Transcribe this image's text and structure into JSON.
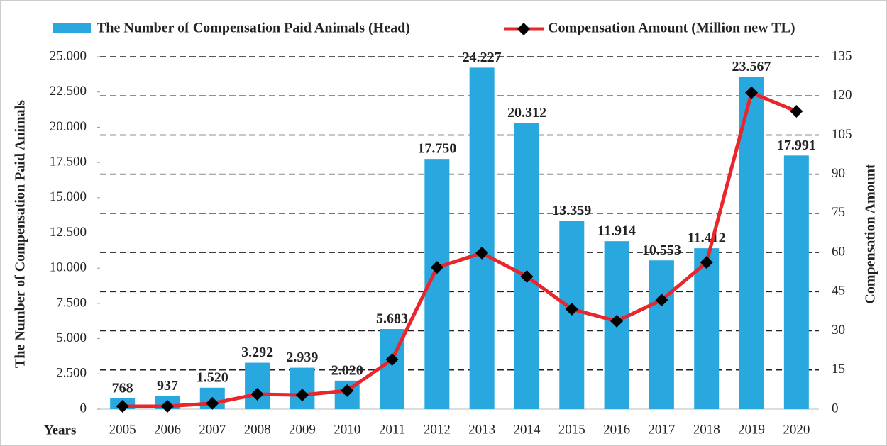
{
  "chart_data": {
    "type": "bar",
    "categories": [
      "2005",
      "2006",
      "2007",
      "2008",
      "2009",
      "2010",
      "2011",
      "2012",
      "2013",
      "2014",
      "2015",
      "2016",
      "2017",
      "2018",
      "2019",
      "2020"
    ],
    "x_label": "Years",
    "y_label": "The Number of  Compensation Paid Animals",
    "y2_label": "Compensation Amount",
    "series": [
      {
        "name": "The Number of Compensation Paid Animals (Head)",
        "type": "bar",
        "color": "#29a8e0",
        "values": [
          768,
          937,
          1520,
          3292,
          2939,
          2020,
          5683,
          17750,
          24227,
          20312,
          13359,
          11914,
          10553,
          11412,
          23567,
          17991
        ],
        "value_labels": [
          "768",
          "937",
          "1.520",
          "3.292",
          "2.939",
          "2.020",
          "5.683",
          "17.750",
          "24.227",
          "20.312",
          "13.359",
          "11.914",
          "10.553",
          "11.412",
          "23.567",
          "17.991"
        ]
      },
      {
        "name": "Compensation Amount (Million new TL)",
        "type": "line",
        "axis": "y2",
        "color": "#e8262b",
        "marker_color": "#000000",
        "values": [
          1.1,
          1.1,
          2.2,
          5.7,
          5.4,
          7.1,
          19,
          54.3,
          59.8,
          50.8,
          38.3,
          33.7,
          41.8,
          56.2,
          121.2,
          114.1
        ]
      }
    ],
    "ylim": [
      0,
      25000
    ],
    "yticks": [
      0,
      {
        "value": 2500,
        "label": "2.500"
      },
      {
        "value": 5000,
        "label": "5.000"
      },
      {
        "value": 7500,
        "label": "7.500"
      },
      {
        "value": 10000,
        "label": "10.000"
      },
      {
        "value": 12500,
        "label": "12.500"
      },
      {
        "value": 15000,
        "label": "15.000"
      },
      {
        "value": 17500,
        "label": "17.500"
      },
      {
        "value": 20000,
        "label": "20.000"
      },
      {
        "value": 22500,
        "label": "22.500"
      },
      {
        "value": 25000,
        "label": "25.000"
      }
    ],
    "y2lim": [
      0,
      135
    ],
    "y2ticks": [
      0,
      15,
      30,
      45,
      60,
      75,
      90,
      105,
      120,
      135
    ],
    "grid": true,
    "legend": "top"
  }
}
